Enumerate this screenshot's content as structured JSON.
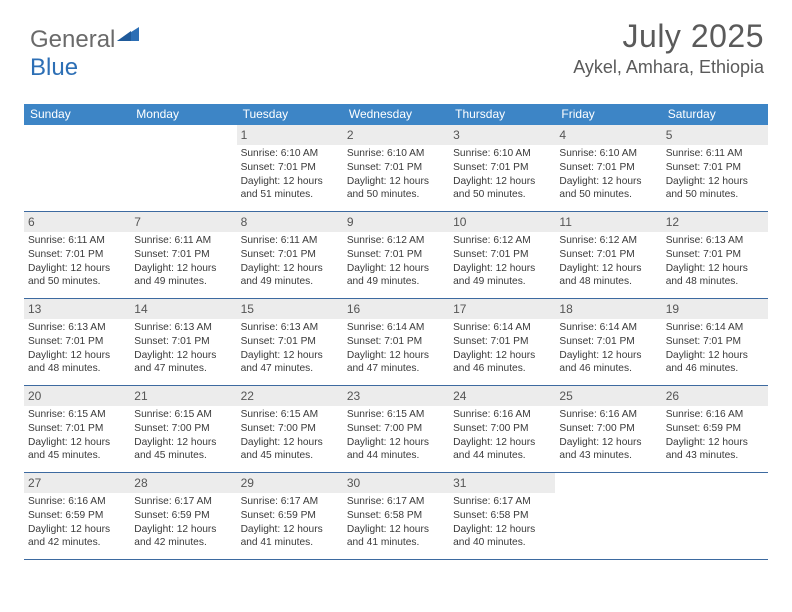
{
  "logo": {
    "part1": "General",
    "part2": "Blue"
  },
  "title": "July 2025",
  "location": "Aykel, Amhara, Ethiopia",
  "colors": {
    "headerBg": "#3d85c6",
    "headerText": "#ffffff",
    "dayNumBg": "#ececec",
    "border": "#3d6aa0",
    "titleColor": "#5a5a5a",
    "logoGray": "#6a6a6a",
    "logoBlue": "#2d6fb5"
  },
  "weekdays": [
    "Sunday",
    "Monday",
    "Tuesday",
    "Wednesday",
    "Thursday",
    "Friday",
    "Saturday"
  ],
  "weeks": [
    [
      null,
      null,
      {
        "n": "1",
        "sr": "6:10 AM",
        "ss": "7:01 PM",
        "dl": "12 hours and 51 minutes."
      },
      {
        "n": "2",
        "sr": "6:10 AM",
        "ss": "7:01 PM",
        "dl": "12 hours and 50 minutes."
      },
      {
        "n": "3",
        "sr": "6:10 AM",
        "ss": "7:01 PM",
        "dl": "12 hours and 50 minutes."
      },
      {
        "n": "4",
        "sr": "6:10 AM",
        "ss": "7:01 PM",
        "dl": "12 hours and 50 minutes."
      },
      {
        "n": "5",
        "sr": "6:11 AM",
        "ss": "7:01 PM",
        "dl": "12 hours and 50 minutes."
      }
    ],
    [
      {
        "n": "6",
        "sr": "6:11 AM",
        "ss": "7:01 PM",
        "dl": "12 hours and 50 minutes."
      },
      {
        "n": "7",
        "sr": "6:11 AM",
        "ss": "7:01 PM",
        "dl": "12 hours and 49 minutes."
      },
      {
        "n": "8",
        "sr": "6:11 AM",
        "ss": "7:01 PM",
        "dl": "12 hours and 49 minutes."
      },
      {
        "n": "9",
        "sr": "6:12 AM",
        "ss": "7:01 PM",
        "dl": "12 hours and 49 minutes."
      },
      {
        "n": "10",
        "sr": "6:12 AM",
        "ss": "7:01 PM",
        "dl": "12 hours and 49 minutes."
      },
      {
        "n": "11",
        "sr": "6:12 AM",
        "ss": "7:01 PM",
        "dl": "12 hours and 48 minutes."
      },
      {
        "n": "12",
        "sr": "6:13 AM",
        "ss": "7:01 PM",
        "dl": "12 hours and 48 minutes."
      }
    ],
    [
      {
        "n": "13",
        "sr": "6:13 AM",
        "ss": "7:01 PM",
        "dl": "12 hours and 48 minutes."
      },
      {
        "n": "14",
        "sr": "6:13 AM",
        "ss": "7:01 PM",
        "dl": "12 hours and 47 minutes."
      },
      {
        "n": "15",
        "sr": "6:13 AM",
        "ss": "7:01 PM",
        "dl": "12 hours and 47 minutes."
      },
      {
        "n": "16",
        "sr": "6:14 AM",
        "ss": "7:01 PM",
        "dl": "12 hours and 47 minutes."
      },
      {
        "n": "17",
        "sr": "6:14 AM",
        "ss": "7:01 PM",
        "dl": "12 hours and 46 minutes."
      },
      {
        "n": "18",
        "sr": "6:14 AM",
        "ss": "7:01 PM",
        "dl": "12 hours and 46 minutes."
      },
      {
        "n": "19",
        "sr": "6:14 AM",
        "ss": "7:01 PM",
        "dl": "12 hours and 46 minutes."
      }
    ],
    [
      {
        "n": "20",
        "sr": "6:15 AM",
        "ss": "7:01 PM",
        "dl": "12 hours and 45 minutes."
      },
      {
        "n": "21",
        "sr": "6:15 AM",
        "ss": "7:00 PM",
        "dl": "12 hours and 45 minutes."
      },
      {
        "n": "22",
        "sr": "6:15 AM",
        "ss": "7:00 PM",
        "dl": "12 hours and 45 minutes."
      },
      {
        "n": "23",
        "sr": "6:15 AM",
        "ss": "7:00 PM",
        "dl": "12 hours and 44 minutes."
      },
      {
        "n": "24",
        "sr": "6:16 AM",
        "ss": "7:00 PM",
        "dl": "12 hours and 44 minutes."
      },
      {
        "n": "25",
        "sr": "6:16 AM",
        "ss": "7:00 PM",
        "dl": "12 hours and 43 minutes."
      },
      {
        "n": "26",
        "sr": "6:16 AM",
        "ss": "6:59 PM",
        "dl": "12 hours and 43 minutes."
      }
    ],
    [
      {
        "n": "27",
        "sr": "6:16 AM",
        "ss": "6:59 PM",
        "dl": "12 hours and 42 minutes."
      },
      {
        "n": "28",
        "sr": "6:17 AM",
        "ss": "6:59 PM",
        "dl": "12 hours and 42 minutes."
      },
      {
        "n": "29",
        "sr": "6:17 AM",
        "ss": "6:59 PM",
        "dl": "12 hours and 41 minutes."
      },
      {
        "n": "30",
        "sr": "6:17 AM",
        "ss": "6:58 PM",
        "dl": "12 hours and 41 minutes."
      },
      {
        "n": "31",
        "sr": "6:17 AM",
        "ss": "6:58 PM",
        "dl": "12 hours and 40 minutes."
      },
      null,
      null
    ]
  ],
  "labels": {
    "sunrise": "Sunrise:",
    "sunset": "Sunset:",
    "daylight": "Daylight:"
  }
}
